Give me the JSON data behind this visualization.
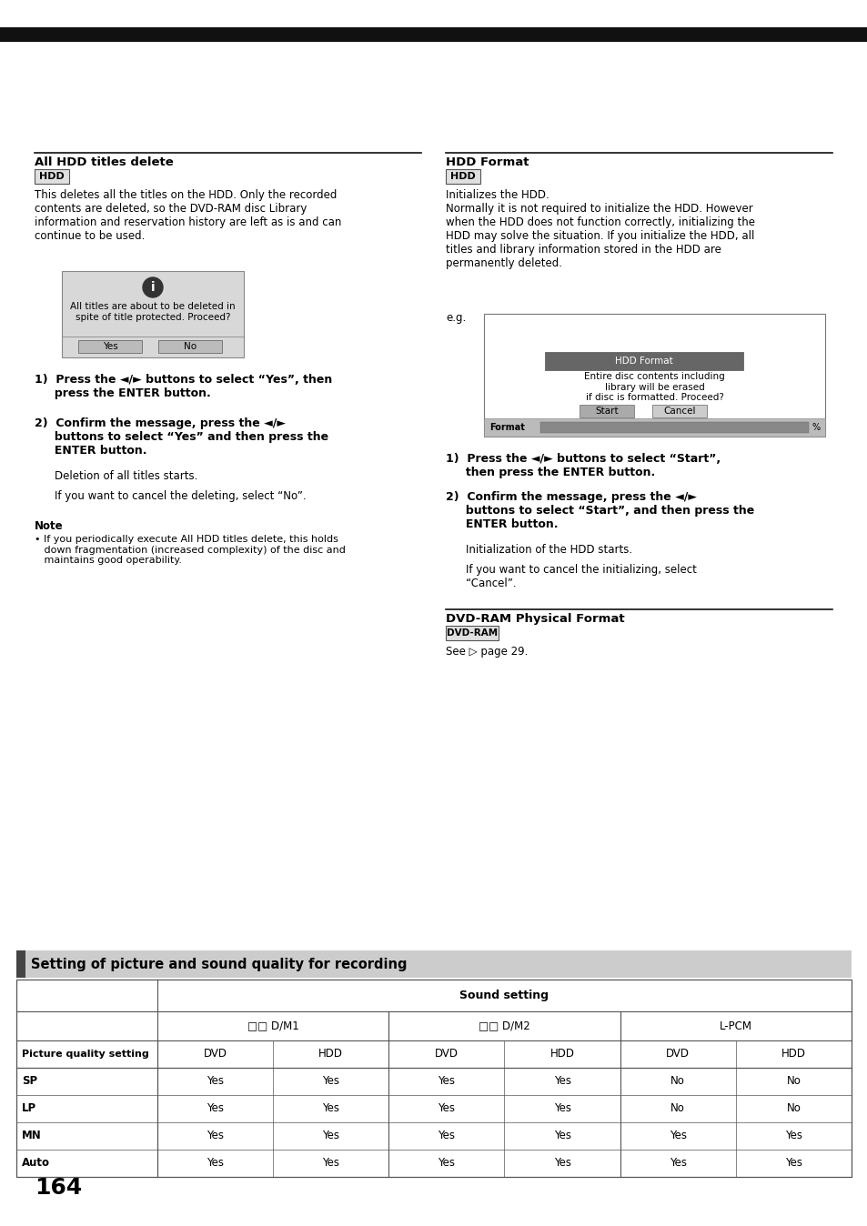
{
  "bg_color": "#ffffff",
  "page_number": "164",
  "sections": {
    "left": {
      "title": "All HDD titles delete",
      "badge": "HDD",
      "body1": "This deletes all the titles on the HDD. Only the recorded\ncontents are deleted, so the DVD-RAM disc Library\ninformation and reservation history are left as is and can\ncontinue to be used.",
      "dialog_text1": "All titles are about to be deleted in\nspite of title protected. Proceed?",
      "dialog_btn1": "Yes",
      "dialog_btn2": "No",
      "step1": "1)  Press the ◄/► buttons to select “Yes”, then\n     press the ENTER button.",
      "step2": "2)  Confirm the message, press the ◄/►\n     buttons to select “Yes” and then press the\n     ENTER button.",
      "after1": "Deletion of all titles starts.",
      "after2": "If you want to cancel the deleting, select “No”.",
      "note_title": "Note",
      "note_body": "• If you periodically execute All HDD titles delete, this holds\n   down fragmentation (increased complexity) of the disc and\n   maintains good operability."
    },
    "right": {
      "title": "HDD Format",
      "badge": "HDD",
      "body1": "Initializes the HDD.\nNormally it is not required to initialize the HDD. However\nwhen the HDD does not function correctly, initializing the\nHDD may solve the situation. If you initialize the HDD, all\ntitles and library information stored in the HDD are\npermanently deleted.",
      "eg_label": "e.g.",
      "dialog_title": "HDD Format",
      "dialog_body": "Entire disc contents including\nlibrary will be erased\nif disc is formatted. Proceed?",
      "dialog_btn1": "Start",
      "dialog_btn2": "Cancel",
      "format_label": "Format",
      "step1": "1)  Press the ◄/► buttons to select “Start”,\n     then press the ENTER button.",
      "step2": "2)  Confirm the message, press the ◄/►\n     buttons to select “Start”, and then press the\n     ENTER button.",
      "after1": "Initialization of the HDD starts.",
      "after2": "If you want to cancel the initializing, select\n“Cancel”.",
      "sub_title": "DVD-RAM Physical Format",
      "sub_badge": "DVD-RAM",
      "sub_body": "See ▷ page 29."
    }
  },
  "table": {
    "section_title": "Setting of picture and sound quality for recording",
    "sound_setting_label": "Sound setting",
    "col_headers": [
      "□□ D/M1",
      "□□ D/M2",
      "L-PCM"
    ],
    "sub_headers": [
      "DVD",
      "HDD",
      "DVD",
      "HDD",
      "DVD",
      "HDD"
    ],
    "row_label_col": "Picture quality setting",
    "rows": [
      {
        "label": "SP",
        "values": [
          "Yes",
          "Yes",
          "Yes",
          "Yes",
          "No",
          "No"
        ]
      },
      {
        "label": "LP",
        "values": [
          "Yes",
          "Yes",
          "Yes",
          "Yes",
          "No",
          "No"
        ]
      },
      {
        "label": "MN",
        "values": [
          "Yes",
          "Yes",
          "Yes",
          "Yes",
          "Yes",
          "Yes"
        ]
      },
      {
        "label": "Auto",
        "values": [
          "Yes",
          "Yes",
          "Yes",
          "Yes",
          "Yes",
          "Yes"
        ]
      }
    ]
  }
}
